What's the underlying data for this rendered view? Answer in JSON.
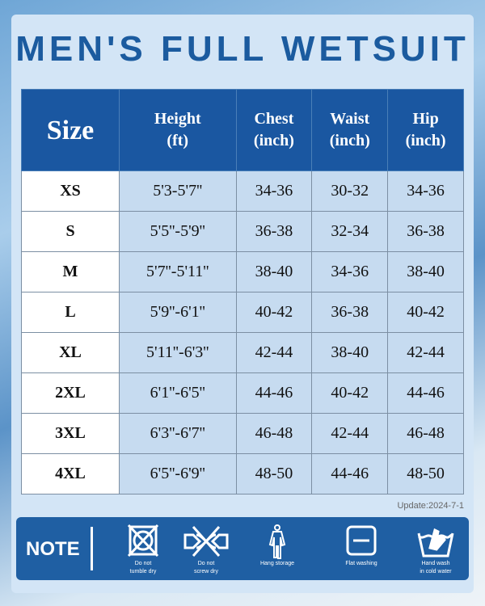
{
  "title": "MEN'S FULL WETSUIT",
  "headers": [
    "Size",
    "Height\n(ft)",
    "Chest\n(inch)",
    "Waist\n(inch)",
    "Hip\n(inch)"
  ],
  "header_lines": [
    [
      "Size"
    ],
    [
      "Height",
      "(ft)"
    ],
    [
      "Chest",
      "(inch)"
    ],
    [
      "Waist",
      "(inch)"
    ],
    [
      "Hip",
      "(inch)"
    ]
  ],
  "rows": [
    [
      "XS",
      "5'3-5'7''",
      "34-36",
      "30-32",
      "34-36"
    ],
    [
      "S",
      "5'5''-5'9''",
      "36-38",
      "32-34",
      "36-38"
    ],
    [
      "M",
      "5'7''-5'11''",
      "38-40",
      "34-36",
      "38-40"
    ],
    [
      "L",
      "5'9''-6'1''",
      "40-42",
      "36-38",
      "40-42"
    ],
    [
      "XL",
      "5'11''-6'3''",
      "42-44",
      "38-40",
      "42-44"
    ],
    [
      "2XL",
      "6'1''-6'5''",
      "44-46",
      "40-42",
      "44-46"
    ],
    [
      "3XL",
      "6'3''-6'7''",
      "46-48",
      "42-44",
      "46-48"
    ],
    [
      "4XL",
      "6'5''-6'9''",
      "48-50",
      "44-46",
      "48-50"
    ]
  ],
  "update": "Update:2024-7-1",
  "note": {
    "label": "NOTE",
    "items": [
      {
        "icon": "no-tumble-dry-icon",
        "lines": [
          "Do not",
          "tumble dry"
        ]
      },
      {
        "icon": "no-wring-icon",
        "lines": [
          "Do not",
          "screw dry"
        ]
      },
      {
        "icon": "hang-storage-icon",
        "lines": [
          "Hang storage"
        ]
      },
      {
        "icon": "flat-washing-icon",
        "lines": [
          "Flat washing"
        ]
      },
      {
        "icon": "hand-wash-icon",
        "lines": [
          "Hand wash",
          "in cold water"
        ]
      }
    ]
  },
  "colors": {
    "header": "#1a57a1",
    "title": "#1b5b9f",
    "cell": "#c6dbf0",
    "note": "#1f5fa3"
  }
}
